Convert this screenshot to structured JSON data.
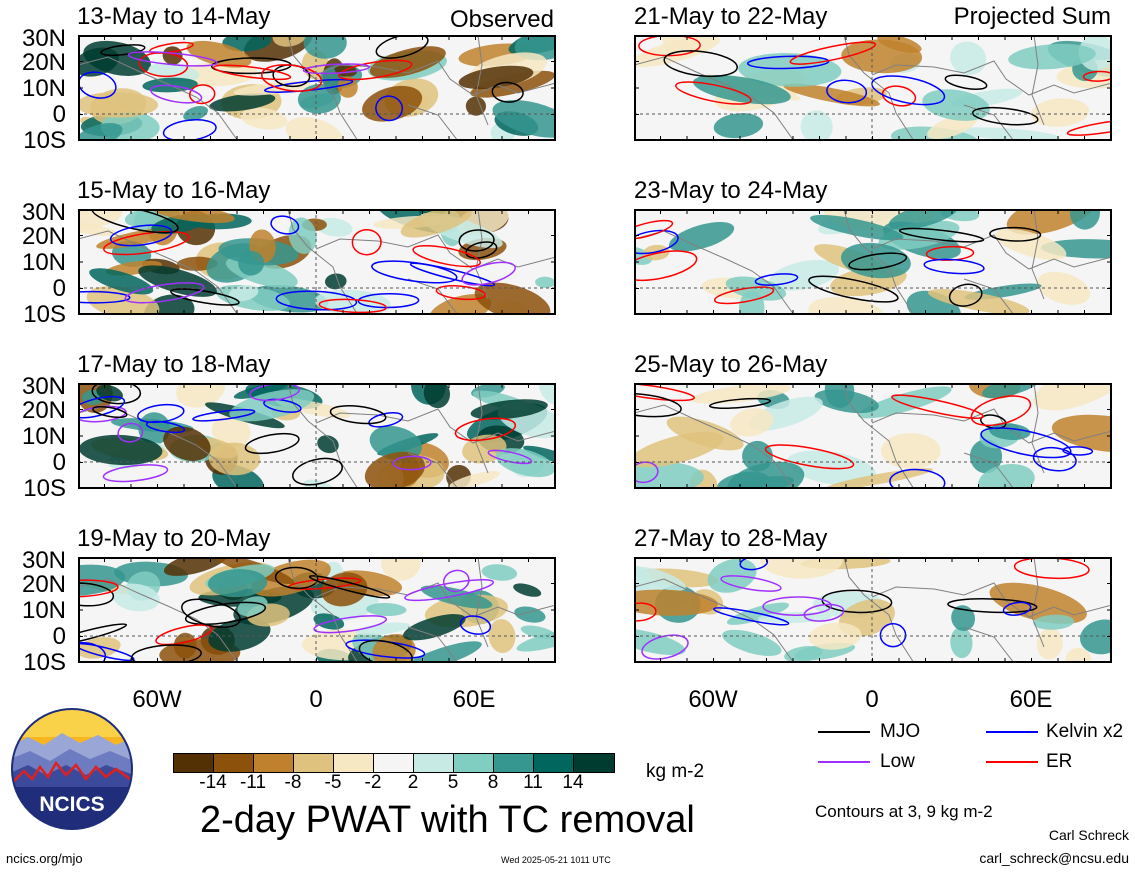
{
  "panels": [
    {
      "date": "13-May to 14-May",
      "tag": "Observed"
    },
    {
      "date": "15-May to 16-May",
      "tag": ""
    },
    {
      "date": "17-May to 18-May",
      "tag": ""
    },
    {
      "date": "19-May to 20-May",
      "tag": ""
    },
    {
      "date": "21-May to 22-May",
      "tag": "Projected Sum"
    },
    {
      "date": "23-May to 24-May",
      "tag": ""
    },
    {
      "date": "25-May to 26-May",
      "tag": ""
    },
    {
      "date": "27-May to 28-May",
      "tag": ""
    }
  ],
  "lat_labels": [
    "30N",
    "20N",
    "10N",
    "0",
    "10S"
  ],
  "lon_labels": [
    "60W",
    "0",
    "60E"
  ],
  "legend": {
    "items": [
      {
        "name": "MJO",
        "color": "#000000"
      },
      {
        "name": "Kelvin x2",
        "color": "#0000ff"
      },
      {
        "name": "Low",
        "color": "#a030ff"
      },
      {
        "name": "ER",
        "color": "#ff0000"
      }
    ],
    "contour_note": "Contours at 3, 9 kg m-2"
  },
  "colorbar": {
    "colors": [
      "#543005",
      "#8c510a",
      "#bf812d",
      "#dfc27d",
      "#f6e8c3",
      "#f5f5f5",
      "#c7eae5",
      "#80cdc1",
      "#35978f",
      "#01665e",
      "#003c30"
    ],
    "ticks": [
      "-14",
      "-11",
      "-8",
      "-5",
      "-2",
      "2",
      "5",
      "8",
      "11",
      "14"
    ],
    "unit": "kg m-2"
  },
  "title": "2-day PWAT with TC removal",
  "logo_text": "NCICS",
  "footer": {
    "left": "ncics.org/mjo",
    "center": "Wed 2025-05-21 1011 UTC",
    "author": "Carl Schreck",
    "email": "carl_schreck@ncsu.edu"
  }
}
